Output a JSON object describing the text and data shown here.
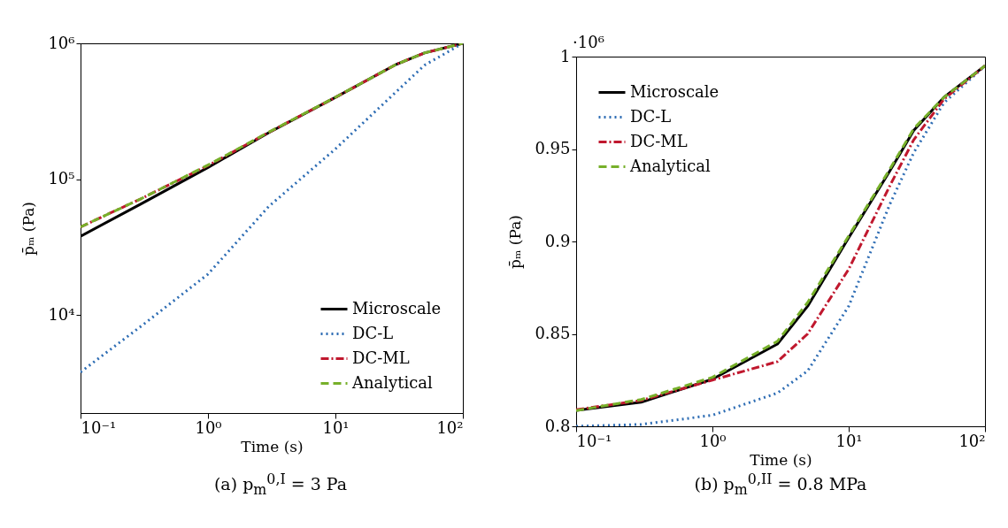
{
  "chart_data": [
    {
      "type": "line",
      "title": "(a) p$_{m}$$^{0,I}$ = 3 Pa",
      "xlabel": "Time (s)",
      "ylabel": "p̄ₘ (Pa)",
      "log": "xy",
      "legend": "bottom right",
      "grid": false,
      "xlim": [
        0.1,
        100
      ],
      "xticks": [
        {
          "value": 0.1,
          "label": "10⁻¹"
        },
        {
          "value": 1,
          "label": "10⁰"
        },
        {
          "value": 10,
          "label": "10¹"
        },
        {
          "value": 100,
          "label": "10²"
        }
      ],
      "ylim": [
        1900,
        1000000
      ],
      "yticks": [
        {
          "value": 10000,
          "label": "10⁴"
        },
        {
          "value": 100000,
          "label": "10⁵"
        },
        {
          "value": 1000000,
          "label": "10⁶"
        }
      ],
      "x": [
        0.1,
        0.3,
        1,
        3,
        10,
        30,
        50,
        100
      ],
      "series": [
        {
          "name": "Microscale",
          "color": "#000000",
          "line_style": "solid",
          "values": [
            38000,
            66000,
            122000,
            220000,
            400000,
            700000,
            850000,
            1000000
          ]
        },
        {
          "name": "DC-L",
          "color": "#2e6db4",
          "line_style": "dotted",
          "values": [
            3800,
            8300,
            20000,
            63000,
            167000,
            440000,
            690000,
            1000000
          ]
        },
        {
          "name": "DC-ML",
          "color": "#c0182e",
          "line_style": "dashdot",
          "values": [
            44500,
            72000,
            126000,
            221000,
            400000,
            700000,
            850000,
            1000000
          ]
        },
        {
          "name": "Analytical",
          "color": "#77b02a",
          "line_style": "dashed",
          "values": [
            44500,
            72000,
            127000,
            222000,
            401000,
            700000,
            850000,
            1000000
          ]
        }
      ]
    },
    {
      "type": "line",
      "title": "(b) p$_{m}$$^{0,II}$ = 0.8 MPa",
      "xlabel": "Time (s)",
      "ylabel": "p̄ₘ (Pa)",
      "log": "x",
      "legend": "top left",
      "grid": false,
      "annotations": [
        "·10⁶"
      ],
      "xlim": [
        0.1,
        100
      ],
      "xticks": [
        {
          "value": 0.1,
          "label": "10⁻¹"
        },
        {
          "value": 1,
          "label": "10⁰"
        },
        {
          "value": 10,
          "label": "10¹"
        },
        {
          "value": 100,
          "label": "10²"
        }
      ],
      "ylim": [
        0.8,
        1
      ],
      "yticks": [
        0.8,
        0.85,
        0.9,
        0.95,
        1
      ],
      "x": [
        0.1,
        0.3,
        1,
        3,
        5,
        10,
        20,
        30,
        50,
        100
      ],
      "series": [
        {
          "name": "Microscale",
          "color": "#000000",
          "line_style": "solid",
          "values": [
            0.8086,
            0.813,
            0.8255,
            0.8445,
            0.865,
            0.902,
            0.938,
            0.96,
            0.978,
            0.995
          ]
        },
        {
          "name": "DC-L",
          "color": "#2e6db4",
          "line_style": "dotted",
          "values": [
            0.8,
            0.801,
            0.806,
            0.818,
            0.83,
            0.865,
            0.92,
            0.948,
            0.975,
            0.995
          ]
        },
        {
          "name": "DC-ML",
          "color": "#c0182e",
          "line_style": "dashdot",
          "values": [
            0.809,
            0.814,
            0.825,
            0.835,
            0.85,
            0.885,
            0.93,
            0.955,
            0.977,
            0.995
          ]
        },
        {
          "name": "Analytical",
          "color": "#77b02a",
          "line_style": "dashed",
          "values": [
            0.8085,
            0.8145,
            0.8265,
            0.846,
            0.867,
            0.903,
            0.939,
            0.961,
            0.978,
            0.995
          ]
        }
      ]
    }
  ]
}
